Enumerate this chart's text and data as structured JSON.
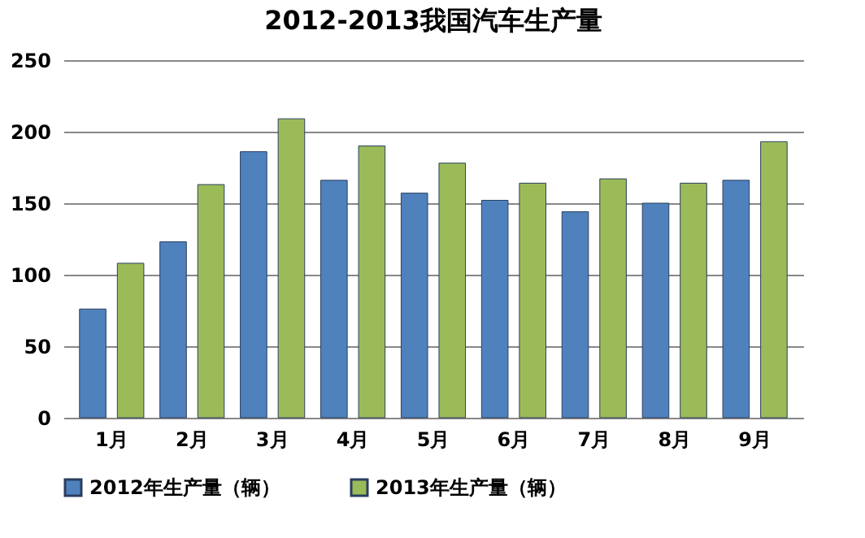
{
  "chart_data": {
    "type": "bar",
    "title": "2012-2013我国汽车生产量",
    "categories": [
      "1月",
      "2月",
      "3月",
      "4月",
      "5月",
      "6月",
      "7月",
      "8月",
      "9月"
    ],
    "series": [
      {
        "name": "2012年生产量（辆）",
        "color": "#4f81bd",
        "values": [
          76,
          123,
          186,
          166,
          157,
          152,
          144,
          150,
          166
        ]
      },
      {
        "name": "2013年生产量（辆）",
        "color": "#9bbb59",
        "values": [
          108,
          163,
          209,
          190,
          178,
          164,
          167,
          164,
          193
        ]
      }
    ],
    "ylim": [
      0,
      250
    ],
    "yticks": [
      0,
      50,
      100,
      150,
      200,
      250
    ],
    "grid": "y",
    "legend": "bottom"
  }
}
